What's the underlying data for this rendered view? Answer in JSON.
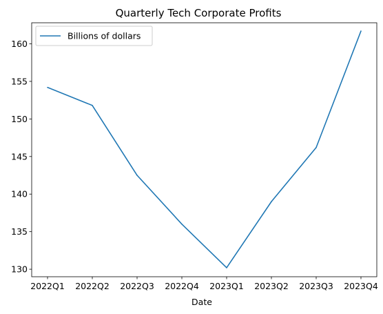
{
  "chart_data": {
    "type": "line",
    "title": "Quarterly Tech Corporate Profits",
    "xlabel": "Date",
    "ylabel": "",
    "categories": [
      "2022Q1",
      "2022Q2",
      "2022Q3",
      "2022Q4",
      "2023Q1",
      "2023Q2",
      "2023Q3",
      "2023Q4"
    ],
    "series": [
      {
        "name": "Billions of dollars",
        "color": "#1f77b4",
        "values": [
          154.2,
          151.8,
          142.5,
          136.0,
          130.2,
          139.0,
          146.2,
          161.7
        ]
      }
    ],
    "ylim": [
      129.0,
      162.8
    ],
    "yticks": [
      130,
      135,
      140,
      145,
      150,
      155,
      160
    ],
    "grid": false,
    "legend": "top-left"
  }
}
